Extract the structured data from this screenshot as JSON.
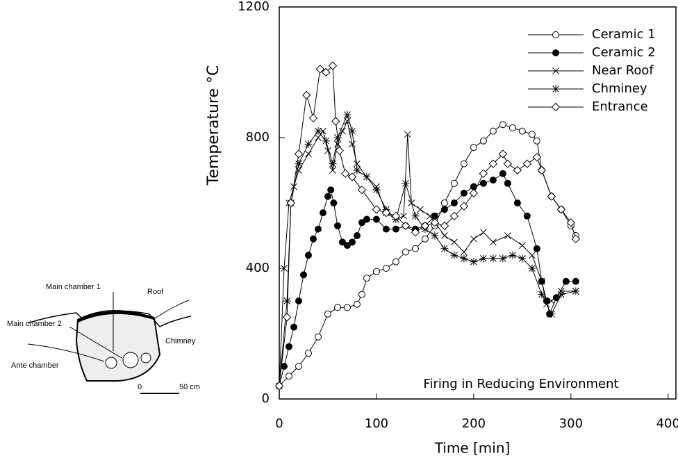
{
  "chart_data": {
    "type": "line",
    "xlabel": "Time [min]",
    "ylabel": "Temperature °C",
    "annotation": "Firing in Reducing Environment",
    "xlim": [
      0,
      408
    ],
    "ylim": [
      0,
      1200
    ],
    "xticks": [
      0,
      100,
      200,
      300,
      400
    ],
    "yticks": [
      0,
      400,
      800,
      1200
    ],
    "legend": "upper right",
    "grid": false,
    "series": [
      {
        "name": "Ceramic 1",
        "color": "#000000",
        "marker": "circle-open",
        "x": [
          0,
          10,
          20,
          30,
          40,
          50,
          60,
          70,
          80,
          85,
          90,
          100,
          110,
          120,
          130,
          140,
          150,
          160,
          170,
          180,
          190,
          200,
          210,
          220,
          230,
          240,
          250,
          260,
          265,
          270,
          280,
          290,
          300,
          305
        ],
        "values": [
          40,
          70,
          100,
          140,
          190,
          260,
          280,
          280,
          290,
          320,
          370,
          390,
          400,
          420,
          450,
          460,
          490,
          530,
          600,
          660,
          720,
          770,
          790,
          820,
          840,
          830,
          820,
          810,
          790,
          700,
          620,
          580,
          530,
          500
        ]
      },
      {
        "name": "Ceramic 2",
        "color": "#000000",
        "marker": "circle-filled",
        "x": [
          0,
          5,
          10,
          15,
          20,
          25,
          30,
          35,
          40,
          45,
          50,
          53,
          56,
          60,
          65,
          70,
          75,
          80,
          85,
          90,
          100,
          110,
          120,
          130,
          140,
          150,
          160,
          170,
          180,
          190,
          200,
          210,
          220,
          230,
          235,
          245,
          255,
          265,
          270,
          275,
          278,
          285,
          295,
          305
        ],
        "values": [
          40,
          100,
          160,
          220,
          300,
          380,
          440,
          490,
          520,
          570,
          620,
          640,
          600,
          530,
          480,
          470,
          480,
          500,
          540,
          550,
          550,
          520,
          520,
          530,
          520,
          530,
          560,
          580,
          600,
          630,
          650,
          660,
          670,
          690,
          660,
          600,
          560,
          460,
          360,
          300,
          260,
          310,
          360,
          360
        ]
      },
      {
        "name": "Near Roof",
        "color": "#000000",
        "marker": "x",
        "x": [
          0,
          5,
          10,
          15,
          20,
          30,
          40,
          45,
          50,
          55,
          60,
          65,
          70,
          75,
          80,
          90,
          100,
          110,
          120,
          128,
          132,
          136,
          145,
          155,
          170,
          180,
          190,
          200,
          210,
          220,
          235,
          250,
          260,
          270,
          275,
          280,
          290,
          305
        ],
        "values": [
          40,
          400,
          600,
          650,
          700,
          750,
          800,
          820,
          760,
          700,
          780,
          820,
          850,
          780,
          720,
          680,
          650,
          570,
          550,
          560,
          810,
          600,
          580,
          560,
          500,
          480,
          450,
          490,
          510,
          480,
          500,
          470,
          440,
          360,
          290,
          300,
          330,
          330
        ]
      },
      {
        "name": "Chminey",
        "color": "#000000",
        "marker": "asterisk",
        "x": [
          0,
          8,
          12,
          20,
          30,
          40,
          48,
          55,
          60,
          70,
          75,
          80,
          90,
          100,
          110,
          120,
          130,
          140,
          150,
          160,
          170,
          180,
          190,
          200,
          210,
          220,
          230,
          240,
          250,
          260,
          270,
          280,
          290,
          305
        ],
        "values": [
          40,
          300,
          600,
          720,
          780,
          820,
          790,
          720,
          800,
          870,
          820,
          700,
          680,
          640,
          580,
          550,
          660,
          560,
          520,
          500,
          460,
          440,
          430,
          420,
          430,
          430,
          430,
          440,
          430,
          400,
          320,
          260,
          320,
          330
        ]
      },
      {
        "name": "Entrance",
        "color": "#000000",
        "marker": "diamond",
        "x": [
          0,
          8,
          12,
          20,
          28,
          35,
          42,
          48,
          55,
          58,
          62,
          68,
          75,
          85,
          100,
          110,
          120,
          130,
          140,
          150,
          160,
          170,
          180,
          190,
          200,
          210,
          220,
          230,
          235,
          245,
          255,
          265,
          270,
          280,
          290,
          300,
          305
        ],
        "values": [
          40,
          250,
          600,
          750,
          930,
          860,
          1010,
          1000,
          1020,
          850,
          760,
          690,
          680,
          640,
          580,
          570,
          560,
          530,
          510,
          530,
          540,
          530,
          560,
          590,
          630,
          690,
          720,
          750,
          720,
          700,
          720,
          740,
          700,
          620,
          580,
          540,
          490
        ]
      }
    ]
  },
  "inset": {
    "labels": [
      "Main chamber 1",
      "Roof",
      "Main chamber 2",
      "Chimney",
      "Ante chamber",
      "0",
      "50 cm"
    ]
  }
}
